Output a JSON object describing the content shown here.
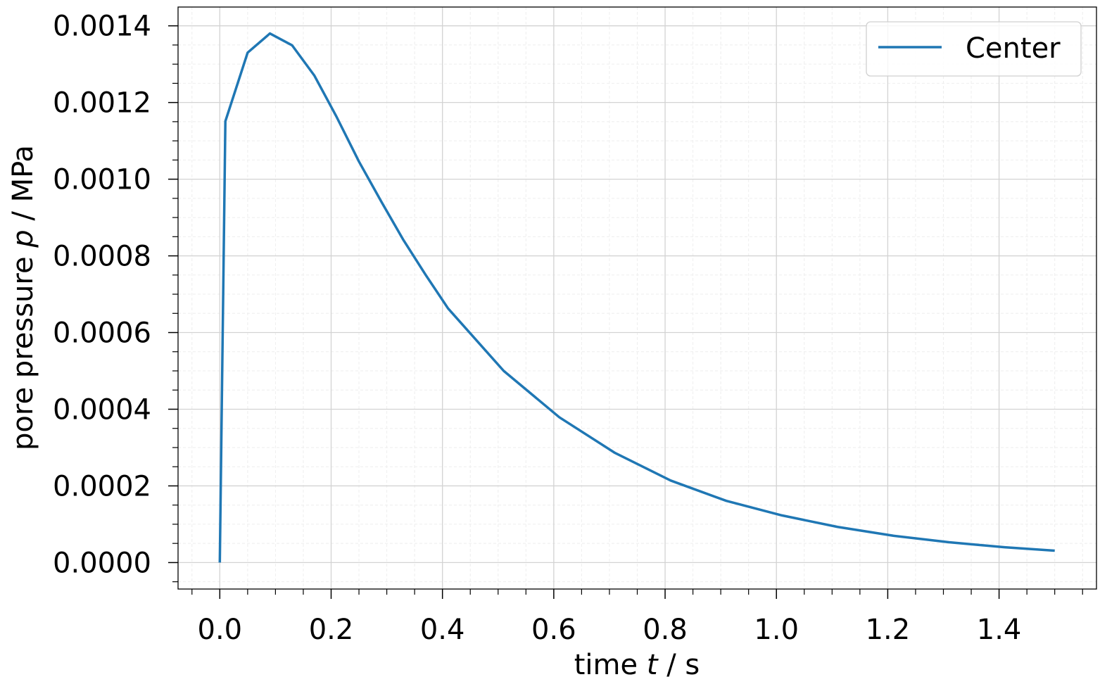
{
  "chart_data": {
    "type": "line",
    "xlabel": [
      "time ",
      "t",
      " / s"
    ],
    "ylabel": [
      "pore pressure ",
      "p",
      " / MPa"
    ],
    "x": [
      0,
      0.01,
      0.05,
      0.09,
      0.13,
      0.17,
      0.21,
      0.25,
      0.29,
      0.33,
      0.37,
      0.41,
      0.51,
      0.61,
      0.71,
      0.81,
      0.91,
      1.01,
      1.11,
      1.21,
      1.31,
      1.41,
      1.5
    ],
    "series": [
      {
        "name": "Center",
        "color": "#1f77b4",
        "values": [
          0,
          0.001151,
          0.00133,
          0.00138,
          0.001349,
          0.00127,
          0.001162,
          0.001046,
          0.000942,
          0.000841,
          0.00075,
          0.000663,
          0.0005,
          0.000379,
          0.000286,
          0.000214,
          0.000161,
          0.000123,
          9.3e-05,
          7e-05,
          5.3e-05,
          4e-05,
          3.1e-05
        ]
      }
    ],
    "xlim": [
      -0.075,
      1.575
    ],
    "ylim": [
      -6.9e-05,
      0.001449
    ],
    "xticks": [
      {
        "value": 0,
        "label": "0.0"
      },
      0.2,
      0.4,
      0.6,
      0.8,
      {
        "value": 1,
        "label": "1.0"
      },
      1.2,
      1.4
    ],
    "yticks": [
      {
        "value": 0,
        "label": "0.0000"
      },
      0.0002,
      0.0004,
      0.0006,
      0.0008,
      {
        "value": 0.001,
        "label": "0.0010"
      },
      0.0012,
      0.0014
    ],
    "xminorticks": [
      -0.05,
      0.05,
      0.1,
      0.15,
      0.25,
      0.3,
      0.35,
      0.45,
      0.5,
      0.55,
      0.65,
      0.7,
      0.75,
      0.85,
      0.9,
      0.95,
      1.05,
      1.1,
      1.15,
      1.25,
      1.3,
      1.35,
      1.45,
      1.5,
      1.55
    ],
    "yminorticks": [
      -5e-05,
      5e-05,
      0.0001,
      0.00015,
      0.00025,
      0.0003,
      0.00035,
      0.00045,
      0.0005,
      0.00055,
      0.00065,
      0.0007,
      0.00075,
      0.00085,
      0.0009,
      0.00095,
      0.00105,
      0.0011,
      0.00115,
      0.00125,
      0.0013,
      0.00135
    ],
    "grid": true,
    "minor_grid": true,
    "legend": "upper right"
  }
}
